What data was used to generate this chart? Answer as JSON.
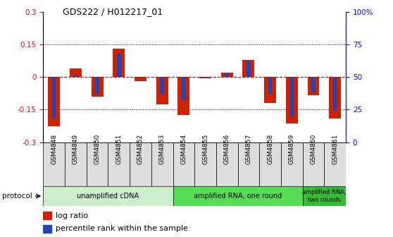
{
  "title": "GDS222 / H012217_01",
  "samples": [
    "GSM4848",
    "GSM4849",
    "GSM4850",
    "GSM4851",
    "GSM4852",
    "GSM4853",
    "GSM4854",
    "GSM4855",
    "GSM4856",
    "GSM4857",
    "GSM4858",
    "GSM4859",
    "GSM4860",
    "GSM4861"
  ],
  "log_ratio": [
    -0.225,
    0.04,
    -0.09,
    0.13,
    -0.02,
    -0.125,
    -0.175,
    -0.005,
    0.02,
    0.08,
    -0.12,
    -0.215,
    -0.085,
    -0.19
  ],
  "percentile": [
    0.18,
    0.52,
    0.37,
    0.68,
    0.5,
    0.37,
    0.32,
    0.49,
    0.53,
    0.62,
    0.37,
    0.2,
    0.38,
    0.24
  ],
  "bar_color": "#cc2200",
  "blue_color": "#2244bb",
  "zero_line_color": "#cc0000",
  "grid_color": "#000000",
  "ylim": [
    -0.3,
    0.3
  ],
  "yticks_left": [
    -0.3,
    -0.15,
    0.0,
    0.15,
    0.3
  ],
  "yticks_left_labels": [
    "-0.3",
    "-0.15",
    "0",
    "0.15",
    "0.3"
  ],
  "right_positions": [
    -0.3,
    -0.15,
    0.0,
    0.15,
    0.3
  ],
  "right_labels": [
    "0",
    "25",
    "50",
    "75",
    "100%"
  ],
  "protocol_groups": [
    {
      "label": "unamplified cDNA",
      "start": 0,
      "end": 6,
      "color": "#cceecc"
    },
    {
      "label": "amplified RNA, one round",
      "start": 6,
      "end": 12,
      "color": "#55dd55"
    },
    {
      "label": "amplified RNA,\ntwo rounds",
      "start": 12,
      "end": 14,
      "color": "#33bb33"
    }
  ],
  "bar_width": 0.55,
  "blue_bar_width": 0.18
}
